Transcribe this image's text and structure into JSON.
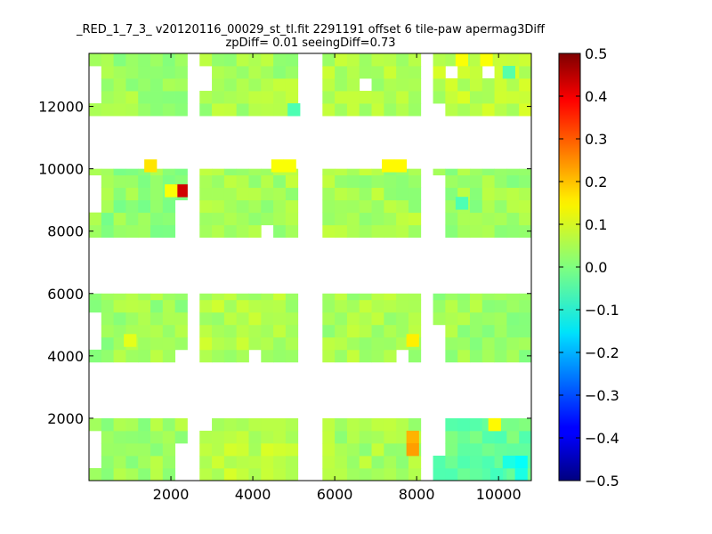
{
  "chart_data": {
    "type": "heatmap",
    "title_line1": "_RED_1_7_3_ v20120116_00029_st_tl.fit 2291191 offset 6 tile-paw apermag3Diff",
    "title_line2": "zpDiff= 0.01 seeingDiff=0.73",
    "xlabel": "",
    "ylabel": "",
    "xlim": [
      0,
      10800
    ],
    "ylim": [
      0,
      13700
    ],
    "xticks": [
      2000,
      4000,
      6000,
      8000,
      10000
    ],
    "xtick_labels": [
      "2000",
      "4000",
      "6000",
      "8000",
      "10000"
    ],
    "yticks": [
      2000,
      4000,
      6000,
      8000,
      10000,
      12000
    ],
    "ytick_labels": [
      "2000",
      "4000",
      "6000",
      "8000",
      "10000",
      "12000"
    ],
    "colorbar": {
      "colormap": "jet",
      "range": [
        -0.5,
        0.5
      ],
      "ticks": [
        0.5,
        0.4,
        0.3,
        0.2,
        0.1,
        0.0,
        -0.1,
        -0.2,
        -0.3,
        -0.4,
        -0.5
      ],
      "tick_labels": [
        "0.5",
        "0.4",
        "0.3",
        "0.2",
        "0.1",
        "0.0",
        "−0.1",
        "−0.2",
        "−0.3",
        "−0.4",
        "−0.5"
      ]
    },
    "cell_size": [
      300,
      400
    ],
    "background_value": 0.02,
    "blocks": [
      {
        "x": [
          0,
          2400
        ],
        "y": [
          0,
          2000
        ],
        "mean": 0.03
      },
      {
        "x": [
          2700,
          5100
        ],
        "y": [
          0,
          2000
        ],
        "mean": 0.06
      },
      {
        "x": [
          5700,
          8100
        ],
        "y": [
          0,
          2000
        ],
        "mean": 0.04
      },
      {
        "x": [
          8400,
          10800
        ],
        "y": [
          0,
          2000
        ],
        "mean": -0.02
      },
      {
        "x": [
          0,
          2400
        ],
        "y": [
          3800,
          6000
        ],
        "mean": 0.03
      },
      {
        "x": [
          2700,
          5100
        ],
        "y": [
          3800,
          6000
        ],
        "mean": 0.05
      },
      {
        "x": [
          5700,
          8100
        ],
        "y": [
          3800,
          6000
        ],
        "mean": 0.04
      },
      {
        "x": [
          8400,
          10800
        ],
        "y": [
          3800,
          6000
        ],
        "mean": 0.03
      },
      {
        "x": [
          0,
          2400
        ],
        "y": [
          7800,
          10000
        ],
        "mean": 0.02
      },
      {
        "x": [
          2700,
          5100
        ],
        "y": [
          7800,
          10000
        ],
        "mean": 0.04
      },
      {
        "x": [
          5700,
          8100
        ],
        "y": [
          7800,
          10000
        ],
        "mean": 0.04
      },
      {
        "x": [
          8400,
          10800
        ],
        "y": [
          7800,
          10000
        ],
        "mean": 0.03
      },
      {
        "x": [
          0,
          2400
        ],
        "y": [
          11700,
          13700
        ],
        "mean": 0.03
      },
      {
        "x": [
          2700,
          5100
        ],
        "y": [
          11700,
          13700
        ],
        "mean": 0.04
      },
      {
        "x": [
          5700,
          8100
        ],
        "y": [
          11700,
          13700
        ],
        "mean": 0.05
      },
      {
        "x": [
          8400,
          10800
        ],
        "y": [
          11700,
          13700
        ],
        "mean": 0.06
      }
    ],
    "highlight_cells": [
      {
        "x": 2250,
        "y": 9300,
        "value": 0.42
      },
      {
        "x": 1500,
        "y": 10100,
        "value": 0.15
      },
      {
        "x": 2000,
        "y": 9300,
        "value": 0.12
      },
      {
        "x": 4600,
        "y": 10100,
        "value": 0.12
      },
      {
        "x": 4900,
        "y": 10100,
        "value": 0.12
      },
      {
        "x": 7300,
        "y": 10100,
        "value": 0.13
      },
      {
        "x": 7600,
        "y": 10100,
        "value": 0.13
      },
      {
        "x": 7900,
        "y": 1400,
        "value": 0.2
      },
      {
        "x": 7900,
        "y": 1000,
        "value": 0.22
      },
      {
        "x": 7900,
        "y": 4500,
        "value": 0.14
      },
      {
        "x": 9900,
        "y": 1800,
        "value": 0.13
      },
      {
        "x": 10550,
        "y": 600,
        "value": -0.12
      },
      {
        "x": 10550,
        "y": 200,
        "value": -0.1
      },
      {
        "x": 10250,
        "y": 600,
        "value": -0.1
      },
      {
        "x": 9950,
        "y": 200,
        "value": -0.06
      },
      {
        "x": 9100,
        "y": 8900,
        "value": -0.05
      },
      {
        "x": 1000,
        "y": 4500,
        "value": 0.1
      },
      {
        "x": 9100,
        "y": 13500,
        "value": 0.12
      },
      {
        "x": 9700,
        "y": 13500,
        "value": 0.12
      },
      {
        "x": 10250,
        "y": 13100,
        "value": -0.04
      },
      {
        "x": 5000,
        "y": 11900,
        "value": -0.05
      }
    ],
    "empty_cells": [
      {
        "x": 150,
        "y": 800
      },
      {
        "x": 150,
        "y": 1200
      },
      {
        "x": 150,
        "y": 1600
      },
      {
        "x": 2250,
        "y": 1200
      },
      {
        "x": 2250,
        "y": 800
      },
      {
        "x": 2250,
        "y": 400
      },
      {
        "x": 2250,
        "y": 0
      },
      {
        "x": 2850,
        "y": 2000
      },
      {
        "x": 8550,
        "y": 1200
      },
      {
        "x": 8550,
        "y": 1600
      },
      {
        "x": 8550,
        "y": 2000
      },
      {
        "x": 150,
        "y": 4400
      },
      {
        "x": 150,
        "y": 4800
      },
      {
        "x": 150,
        "y": 5200
      },
      {
        "x": 2250,
        "y": 3800
      },
      {
        "x": 4050,
        "y": 3800
      },
      {
        "x": 7800,
        "y": 3800
      },
      {
        "x": 8250,
        "y": 3800
      },
      {
        "x": 8250,
        "y": 4200
      },
      {
        "x": 8250,
        "y": 4600
      },
      {
        "x": 8250,
        "y": 5000
      },
      {
        "x": 8250,
        "y": 5400
      },
      {
        "x": 8250,
        "y": 5800
      },
      {
        "x": 8550,
        "y": 3800
      },
      {
        "x": 8550,
        "y": 4200
      },
      {
        "x": 8550,
        "y": 4600
      },
      {
        "x": 150,
        "y": 8600
      },
      {
        "x": 150,
        "y": 9000
      },
      {
        "x": 150,
        "y": 9400
      },
      {
        "x": 2250,
        "y": 7800
      },
      {
        "x": 2250,
        "y": 8200
      },
      {
        "x": 2250,
        "y": 8600
      },
      {
        "x": 4500,
        "y": 7800
      },
      {
        "x": 8550,
        "y": 7800
      },
      {
        "x": 8550,
        "y": 8200
      },
      {
        "x": 8550,
        "y": 8600
      },
      {
        "x": 8550,
        "y": 9000
      },
      {
        "x": 8550,
        "y": 9400
      },
      {
        "x": 150,
        "y": 12200
      },
      {
        "x": 150,
        "y": 12600
      },
      {
        "x": 150,
        "y": 13000
      },
      {
        "x": 150,
        "y": 13300
      },
      {
        "x": 2250,
        "y": 11700
      },
      {
        "x": 2850,
        "y": 12600
      },
      {
        "x": 2850,
        "y": 13000
      },
      {
        "x": 2850,
        "y": 13300
      },
      {
        "x": 6800,
        "y": 12800
      },
      {
        "x": 8250,
        "y": 11700
      },
      {
        "x": 8250,
        "y": 12100
      },
      {
        "x": 8250,
        "y": 12500
      },
      {
        "x": 8250,
        "y": 13000
      },
      {
        "x": 8250,
        "y": 13300
      },
      {
        "x": 8550,
        "y": 11700
      },
      {
        "x": 8550,
        "y": 12100
      },
      {
        "x": 8850,
        "y": 13300
      },
      {
        "x": 10000,
        "y": 13000
      },
      {
        "x": 10000,
        "y": 13300
      }
    ]
  }
}
